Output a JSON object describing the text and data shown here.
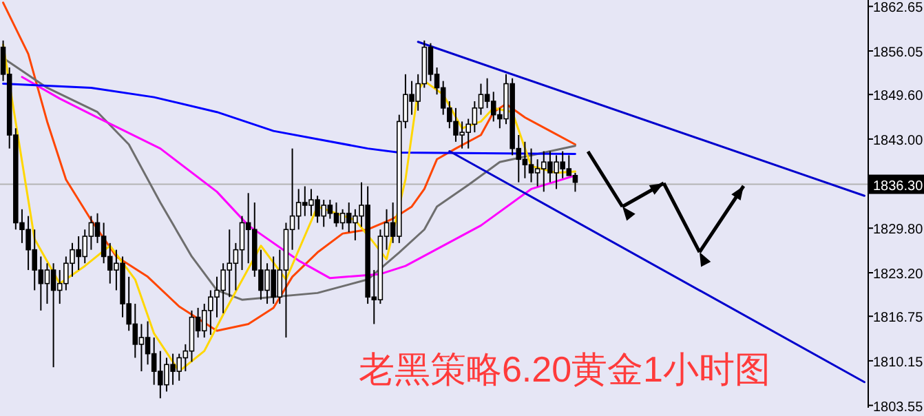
{
  "chart_data": {
    "type": "candlestick",
    "title": "老黑策略6.20黄金1小时图",
    "categories": [
      null,
      null,
      null,
      null,
      null,
      null,
      null,
      null,
      null,
      null,
      null,
      null,
      null,
      null,
      null,
      null,
      null,
      null,
      null,
      null,
      null,
      null,
      null,
      null,
      null,
      null,
      null,
      null,
      null,
      null,
      null,
      null,
      null,
      null,
      null,
      null,
      null,
      null,
      null,
      null,
      null,
      null,
      null,
      null,
      null,
      null,
      null,
      null,
      null,
      null,
      null,
      null,
      null,
      null,
      null,
      null,
      null,
      null,
      null,
      null,
      null,
      null,
      null,
      null,
      null,
      null,
      null,
      null,
      null,
      null,
      null,
      null,
      null,
      null,
      null,
      null,
      null,
      null,
      null,
      null,
      null,
      null,
      null,
      null,
      null,
      null,
      null,
      null,
      null,
      null,
      null,
      null,
      null,
      null,
      null,
      null,
      null,
      null,
      null,
      null,
      null,
      null,
      null,
      null,
      null,
      null,
      null,
      null,
      null,
      null,
      null,
      null,
      null,
      null,
      null,
      null,
      null,
      null,
      null,
      null,
      null,
      null,
      null,
      null,
      null,
      null,
      null,
      null,
      null,
      null,
      null,
      null,
      null,
      null,
      null,
      null,
      null,
      null
    ],
    "ohlc": [
      [
        1856.6,
        1857.6,
        1851.6,
        1852.6
      ],
      [
        1852.6,
        1853.6,
        1841.6,
        1843.6
      ],
      [
        1843.6,
        1844.6,
        1829.6,
        1830.6
      ],
      [
        1830.6,
        1832.6,
        1827.6,
        1829.6
      ],
      [
        1829.6,
        1831.6,
        1823.6,
        1826.6
      ],
      [
        1826.6,
        1829.6,
        1820.6,
        1823.6
      ],
      [
        1823.6,
        1825.6,
        1817.6,
        1821.6
      ],
      [
        1821.6,
        1824.6,
        1818.6,
        1823.6
      ],
      [
        1823.6,
        1824.6,
        1809.2,
        1820.6
      ],
      [
        1820.6,
        1823.6,
        1818.6,
        1821.6
      ],
      [
        1821.6,
        1825.6,
        1820.6,
        1824.6
      ],
      [
        1824.6,
        1827.6,
        1822.6,
        1826.6
      ],
      [
        1826.6,
        1828.6,
        1823.6,
        1825.6
      ],
      [
        1825.6,
        1829.6,
        1824.6,
        1828.6
      ],
      [
        1828.6,
        1831.6,
        1826.6,
        1830.6
      ],
      [
        1830.6,
        1832.0,
        1827.6,
        1828.6
      ],
      [
        1828.6,
        1830.6,
        1824.6,
        1825.6
      ],
      [
        1825.6,
        1827.6,
        1821.6,
        1823.6
      ],
      [
        1823.6,
        1826.6,
        1820.6,
        1824.6
      ],
      [
        1824.6,
        1825.6,
        1816.6,
        1818.6
      ],
      [
        1818.6,
        1822.6,
        1814.6,
        1815.6
      ],
      [
        1815.6,
        1818.6,
        1810.6,
        1812.6
      ],
      [
        1812.6,
        1815.6,
        1808.6,
        1813.6
      ],
      [
        1813.6,
        1816.0,
        1809.6,
        1811.2
      ],
      [
        1811.2,
        1813.6,
        1806.6,
        1808.6
      ],
      [
        1808.6,
        1811.6,
        1804.6,
        1806.6
      ],
      [
        1806.6,
        1810.6,
        1805.6,
        1809.6
      ],
      [
        1809.6,
        1811.2,
        1806.6,
        1808.6
      ],
      [
        1808.6,
        1811.2,
        1807.2,
        1810.6
      ],
      [
        1810.6,
        1812.6,
        1808.6,
        1811.6
      ],
      [
        1811.6,
        1817.6,
        1810.0,
        1816.6
      ],
      [
        1816.6,
        1818.0,
        1813.6,
        1814.6
      ],
      [
        1814.6,
        1818.6,
        1813.6,
        1817.6
      ],
      [
        1817.6,
        1820.6,
        1814.0,
        1819.6
      ],
      [
        1819.6,
        1822.6,
        1816.6,
        1820.6
      ],
      [
        1820.6,
        1824.6,
        1817.2,
        1823.6
      ],
      [
        1823.6,
        1829.6,
        1819.6,
        1824.6
      ],
      [
        1824.6,
        1827.6,
        1820.6,
        1826.6
      ],
      [
        1826.6,
        1831.6,
        1823.6,
        1830.6
      ],
      [
        1830.6,
        1835.0,
        1824.6,
        1829.6
      ],
      [
        1829.6,
        1833.6,
        1822.6,
        1823.6
      ],
      [
        1823.6,
        1826.6,
        1819.2,
        1820.6
      ],
      [
        1820.6,
        1824.6,
        1818.6,
        1823.6
      ],
      [
        1823.6,
        1825.6,
        1818.6,
        1819.6
      ],
      [
        1819.6,
        1826.6,
        1818.6,
        1823.6
      ],
      [
        1823.6,
        1830.6,
        1813.6,
        1829.6
      ],
      [
        1829.6,
        1841.6,
        1826.6,
        1831.6
      ],
      [
        1831.6,
        1835.6,
        1829.6,
        1833.6
      ],
      [
        1833.6,
        1836.0,
        1831.6,
        1833.2
      ],
      [
        1833.2,
        1835.6,
        1831.6,
        1834.0
      ],
      [
        1834.0,
        1834.6,
        1830.6,
        1831.6
      ],
      [
        1831.6,
        1834.0,
        1830.0,
        1833.2
      ],
      [
        1833.2,
        1834.0,
        1831.2,
        1832.0
      ],
      [
        1832.0,
        1833.6,
        1830.0,
        1830.6
      ],
      [
        1830.6,
        1832.6,
        1829.6,
        1832.0
      ],
      [
        1832.0,
        1833.6,
        1829.2,
        1830.6
      ],
      [
        1830.6,
        1832.6,
        1828.0,
        1831.6
      ],
      [
        1831.6,
        1836.6,
        1830.0,
        1833.2
      ],
      [
        1833.2,
        1836.0,
        1818.6,
        1819.6
      ],
      [
        1819.6,
        1823.6,
        1815.6,
        1819.2
      ],
      [
        1819.2,
        1829.6,
        1818.6,
        1828.6
      ],
      [
        1828.6,
        1832.6,
        1826.6,
        1830.6
      ],
      [
        1830.6,
        1833.6,
        1827.6,
        1828.6
      ],
      [
        1828.6,
        1846.6,
        1827.6,
        1845.6
      ],
      [
        1845.6,
        1852.6,
        1844.6,
        1849.6
      ],
      [
        1849.6,
        1851.6,
        1846.6,
        1848.6
      ],
      [
        1848.6,
        1852.6,
        1847.2,
        1851.2
      ],
      [
        1851.2,
        1857.6,
        1850.6,
        1856.6
      ],
      [
        1856.6,
        1857.2,
        1851.6,
        1852.6
      ],
      [
        1852.6,
        1853.6,
        1849.6,
        1850.6
      ],
      [
        1850.6,
        1851.6,
        1846.6,
        1847.6
      ],
      [
        1847.6,
        1848.6,
        1844.6,
        1845.6
      ],
      [
        1845.6,
        1847.6,
        1842.6,
        1843.6
      ],
      [
        1843.6,
        1845.6,
        1841.6,
        1844.0
      ],
      [
        1844.0,
        1846.0,
        1841.6,
        1845.2
      ],
      [
        1845.2,
        1848.6,
        1844.0,
        1847.6
      ],
      [
        1847.6,
        1851.2,
        1846.6,
        1849.6
      ],
      [
        1849.6,
        1852.0,
        1847.6,
        1848.6
      ],
      [
        1848.6,
        1850.0,
        1845.6,
        1846.6
      ],
      [
        1846.6,
        1847.6,
        1844.6,
        1846.0
      ],
      [
        1846.0,
        1852.6,
        1845.2,
        1851.2
      ],
      [
        1851.2,
        1852.0,
        1840.6,
        1841.6
      ],
      [
        1841.6,
        1843.6,
        1836.6,
        1840.0
      ],
      [
        1840.0,
        1842.6,
        1837.2,
        1839.2
      ],
      [
        1839.2,
        1841.6,
        1836.6,
        1838.0
      ],
      [
        1838.0,
        1840.0,
        1836.0,
        1838.6
      ],
      [
        1838.6,
        1841.2,
        1835.2,
        1839.6
      ],
      [
        1839.6,
        1841.2,
        1836.6,
        1838.0
      ],
      [
        1838.0,
        1840.6,
        1835.6,
        1839.6
      ],
      [
        1839.6,
        1841.2,
        1837.2,
        1838.6
      ],
      [
        1838.6,
        1840.6,
        1837.6,
        1837.6
      ],
      [
        1837.6,
        1838.0,
        1835.2,
        1836.6
      ],
      null,
      null,
      null,
      null,
      null,
      null,
      null,
      null,
      null,
      null,
      null,
      null,
      null,
      null,
      null,
      null,
      null,
      null,
      null,
      null,
      null,
      null,
      null,
      null,
      null,
      null,
      null,
      null,
      null,
      null,
      null,
      null,
      null,
      null,
      null,
      null,
      null,
      null,
      null,
      null,
      null,
      null,
      null,
      null,
      null,
      null
    ],
    "series": [
      {
        "type": "line",
        "color": "#ff4500",
        "values": [
          1863.2,
          null,
          null,
          null,
          1855.6,
          null,
          null,
          1845.6,
          null,
          null,
          1837.0,
          null,
          null,
          null,
          1831.0,
          null,
          null,
          null,
          1825.6,
          null,
          null,
          null,
          null,
          1822.6,
          null,
          null,
          null,
          null,
          1818.2,
          null,
          null,
          null,
          null,
          null,
          1814.6,
          null,
          null,
          null,
          null,
          1815.6,
          null,
          null,
          null,
          1818.0,
          null,
          null,
          1822.6,
          null,
          null,
          null,
          1826.2,
          null,
          null,
          null,
          1829.0,
          null,
          null,
          null,
          1829.6,
          null,
          null,
          null,
          1831.2,
          null,
          null,
          1833.0,
          null,
          1835.6,
          null,
          1840.0,
          null,
          null,
          1841.6,
          null,
          null,
          null,
          1843.6,
          null,
          1847.0,
          null,
          1848.2,
          null,
          null,
          1846.2,
          null,
          null,
          null,
          1844.2,
          null,
          null,
          null,
          1842.2,
          null,
          null,
          null,
          null,
          null,
          null,
          null,
          null,
          null,
          null,
          null,
          null,
          null,
          null,
          null,
          null,
          null,
          null,
          null,
          null,
          null,
          null,
          null,
          null,
          null,
          null,
          null,
          null,
          null,
          null,
          null,
          null,
          null,
          null,
          null,
          null,
          null,
          null,
          null,
          null,
          null,
          null,
          null,
          null,
          null,
          null
        ]
      },
      {
        "type": "line",
        "color": "#6e6e6e",
        "values": [
          1855.0,
          null,
          null,
          null,
          null,
          null,
          null,
          1850.6,
          null,
          null,
          null,
          null,
          null,
          null,
          null,
          1847.0,
          null,
          null,
          null,
          null,
          1842.2,
          null,
          null,
          null,
          null,
          1833.6,
          null,
          null,
          null,
          null,
          1825.6,
          null,
          null,
          null,
          1820.6,
          null,
          null,
          null,
          1819.2,
          null,
          null,
          null,
          null,
          null,
          null,
          null,
          null,
          null,
          null,
          null,
          1820.2,
          null,
          null,
          null,
          null,
          null,
          null,
          null,
          1822.2,
          null,
          null,
          null,
          null,
          1826.2,
          null,
          null,
          null,
          1829.6,
          null,
          1833.0,
          null,
          null,
          null,
          null,
          1836.2,
          null,
          null,
          null,
          null,
          1839.6,
          null,
          null,
          null,
          null,
          1840.6,
          null,
          null,
          null,
          null,
          null,
          null,
          1842.0,
          null,
          null,
          null,
          null,
          null,
          null,
          null,
          null,
          null,
          null,
          null,
          null,
          null,
          null,
          null,
          null,
          null,
          null,
          null,
          null,
          null,
          null,
          null,
          null,
          null,
          null,
          null,
          null,
          null,
          null,
          null,
          null,
          null,
          null,
          null,
          null,
          null,
          null,
          null,
          null,
          null,
          null,
          null,
          null,
          null,
          null
        ]
      },
      {
        "type": "line",
        "color": "#ff00ff",
        "values": [
          null,
          null,
          null,
          1852.2,
          null,
          null,
          null,
          null,
          null,
          1849.0,
          null,
          null,
          null,
          null,
          null,
          1846.2,
          null,
          null,
          null,
          null,
          null,
          null,
          null,
          null,
          null,
          1841.6,
          null,
          null,
          null,
          null,
          null,
          null,
          null,
          null,
          1835.2,
          null,
          null,
          null,
          null,
          1830.2,
          null,
          null,
          null,
          null,
          null,
          null,
          null,
          1825.0,
          null,
          null,
          null,
          null,
          1822.4,
          null,
          null,
          null,
          null,
          null,
          null,
          null,
          1823.0,
          null,
          null,
          null,
          1824.2,
          null,
          null,
          null,
          null,
          null,
          null,
          null,
          null,
          null,
          null,
          null,
          1830.2,
          null,
          null,
          null,
          null,
          null,
          null,
          null,
          1835.6,
          null,
          null,
          null,
          null,
          null,
          null,
          1837.6,
          null,
          null,
          null,
          null,
          null,
          null,
          null,
          null,
          null,
          null,
          null,
          null,
          null,
          null,
          null,
          null,
          null,
          null,
          null,
          null,
          null,
          null,
          null,
          null,
          null,
          null,
          null,
          null,
          null,
          null,
          null,
          null,
          null,
          null,
          null,
          null,
          null,
          null,
          null,
          null,
          null,
          null,
          null,
          null,
          null,
          null
        ]
      },
      {
        "type": "line",
        "color": "#0000ff",
        "values": [
          1851.2,
          null,
          null,
          null,
          null,
          null,
          null,
          null,
          null,
          null,
          null,
          null,
          null,
          null,
          1850.6,
          null,
          null,
          null,
          null,
          null,
          null,
          null,
          null,
          null,
          1849.2,
          null,
          null,
          null,
          null,
          null,
          null,
          null,
          null,
          null,
          1847.0,
          null,
          null,
          null,
          null,
          null,
          null,
          null,
          null,
          1844.2,
          null,
          null,
          null,
          null,
          null,
          null,
          null,
          null,
          null,
          null,
          null,
          null,
          null,
          null,
          1841.6,
          null,
          null,
          null,
          null,
          1841.0,
          null,
          null,
          null,
          null,
          null,
          null,
          null,
          null,
          null,
          null,
          null,
          null,
          null,
          null,
          null,
          null,
          null,
          null,
          null,
          null,
          null,
          null,
          null,
          null,
          null,
          null,
          null,
          1840.8,
          null,
          null,
          null,
          null,
          null,
          null,
          null,
          null,
          null,
          null,
          null,
          null,
          null,
          null,
          null,
          null,
          null,
          null,
          null,
          null,
          null,
          null,
          null,
          null,
          null,
          null,
          null,
          null,
          null,
          null,
          null,
          null,
          null,
          null,
          null,
          null,
          null,
          null,
          null,
          null,
          null,
          null,
          null,
          null,
          null,
          null
        ]
      },
      {
        "type": "line",
        "color": "#ffd700",
        "values": [
          1857.0,
          null,
          null,
          null,
          null,
          1828.2,
          null,
          null,
          null,
          1821.6,
          null,
          null,
          null,
          1824.2,
          null,
          null,
          null,
          1827.2,
          null,
          null,
          null,
          1822.2,
          null,
          null,
          1814.2,
          null,
          null,
          null,
          1808.6,
          null,
          null,
          null,
          1811.6,
          null,
          null,
          1817.0,
          null,
          null,
          null,
          null,
          null,
          1827.2,
          null,
          null,
          null,
          1822.2,
          null,
          null,
          null,
          null,
          1833.0,
          null,
          null,
          null,
          null,
          null,
          1831.0,
          null,
          null,
          1827.6,
          null,
          1825.2,
          null,
          null,
          1837.0,
          null,
          1850.2,
          1851.6,
          null,
          null,
          1849.6,
          null,
          null,
          1844.6,
          null,
          null,
          1845.6,
          null,
          1847.6,
          null,
          null,
          1847.0,
          null,
          null,
          1839.0,
          null,
          null,
          null,
          1838.0,
          null,
          null,
          1838.2,
          null,
          null,
          null,
          null,
          null,
          null,
          null,
          null,
          null,
          null,
          null,
          null,
          null,
          null,
          null,
          null,
          null,
          null,
          null,
          null,
          null,
          null,
          null,
          null,
          null,
          null,
          null,
          null,
          null,
          null,
          null,
          null,
          null,
          null,
          null,
          null,
          null,
          null,
          null,
          null,
          null,
          null,
          null,
          null,
          null,
          null
        ]
      },
      {
        "type": "line",
        "color": "#0000cd",
        "values": [
          null,
          null,
          null,
          null,
          null,
          null,
          null,
          null,
          null,
          null,
          null,
          null,
          null,
          null,
          null,
          null,
          null,
          null,
          null,
          null,
          null,
          null,
          null,
          null,
          null,
          null,
          null,
          null,
          null,
          null,
          null,
          null,
          null,
          null,
          null,
          null,
          null,
          null,
          null,
          null,
          null,
          null,
          null,
          null,
          null,
          null,
          null,
          null,
          null,
          null,
          null,
          null,
          null,
          null,
          null,
          null,
          null,
          null,
          null,
          null,
          null,
          null,
          null,
          null,
          null,
          null,
          1857.4,
          null,
          null,
          null,
          null,
          null,
          null,
          null,
          null,
          null,
          null,
          null,
          null,
          null,
          null,
          null,
          null,
          null,
          null,
          null,
          null,
          null,
          null,
          null,
          null,
          null,
          null,
          null,
          null,
          null,
          null,
          null,
          null,
          null,
          null,
          null,
          null,
          null,
          null,
          null,
          null,
          null,
          null,
          null,
          null,
          null,
          null,
          null,
          null,
          null,
          null,
          null,
          null,
          null,
          null,
          null,
          null,
          null,
          null,
          null,
          null,
          null,
          null,
          null,
          null,
          null,
          null,
          null,
          null,
          null,
          null,
          1834.6
        ]
      },
      {
        "type": "line",
        "color": "#0000cd",
        "values": [
          null,
          null,
          null,
          null,
          null,
          null,
          null,
          null,
          null,
          null,
          null,
          null,
          null,
          null,
          null,
          null,
          null,
          null,
          null,
          null,
          null,
          null,
          null,
          null,
          null,
          null,
          null,
          null,
          null,
          null,
          null,
          null,
          null,
          null,
          null,
          null,
          null,
          null,
          null,
          null,
          null,
          null,
          null,
          null,
          null,
          null,
          null,
          null,
          null,
          null,
          null,
          null,
          null,
          null,
          null,
          null,
          null,
          null,
          null,
          null,
          null,
          null,
          null,
          null,
          null,
          null,
          null,
          null,
          null,
          null,
          null,
          1841.2,
          null,
          null,
          null,
          null,
          null,
          null,
          null,
          null,
          null,
          null,
          null,
          null,
          null,
          null,
          null,
          null,
          null,
          null,
          null,
          null,
          null,
          null,
          null,
          null,
          null,
          null,
          null,
          null,
          null,
          null,
          null,
          null,
          null,
          null,
          null,
          null,
          null,
          null,
          null,
          null,
          null,
          null,
          null,
          null,
          null,
          null,
          null,
          null,
          null,
          null,
          null,
          null,
          null,
          null,
          null,
          null,
          null,
          null,
          null,
          null,
          null,
          null,
          null,
          null,
          null,
          1807.0
        ]
      }
    ],
    "ylim": [
      1803.2,
      1863.6
    ],
    "yticks": [
      1862.65,
      1856.05,
      {
        "value": 1849.6,
        "label": "1849.60"
      },
      {
        "value": 1843.0,
        "label": "1843.00"
      },
      {
        "value": 1829.8,
        "label": "1829.80"
      },
      {
        "value": 1823.2,
        "label": "1823.20"
      },
      1816.75,
      1810.15,
      1803.55
    ],
    "ref_lines": [
      {
        "axis": "y",
        "value": 1836.3,
        "label": "1836.30",
        "color": "#b4b4b4"
      }
    ]
  }
}
